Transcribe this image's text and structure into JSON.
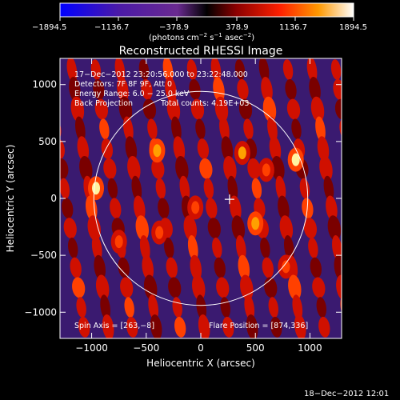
{
  "colorbar": {
    "ticks": [
      "−1894.5",
      "−1136.7",
      "−378.9",
      "378.9",
      "1136.7",
      "1894.5"
    ],
    "units_prefix": "(photons cm",
    "units_exp1": "−2",
    "units_mid": " s",
    "units_exp2": "−1",
    "units_mid2": " asec",
    "units_exp3": "−2",
    "units_suffix": ")"
  },
  "overlay": {
    "line1": "17−Dec−2012 23:20:56.000 to 23:22:48.000",
    "line2": "Detectors: 7F 8F 9F, Att 0",
    "line3": "Energy Range: 6.0 − 25.0 keV",
    "line4a": "Back Projection",
    "line4b": "Total counts: 4.19E+03",
    "spin_axis": "Spin Axis = [263,−8]",
    "flare_position": "Flare Position = [874,336]"
  },
  "footer": {
    "date": "18−Dec−2012 12:01"
  },
  "chart_data": {
    "type": "heatmap",
    "title": "Reconstructed RHESSI Image",
    "xlabel": "Heliocentric X (arcsec)",
    "ylabel": "Heliocentric Y (arcsec)",
    "xlim": [
      -1290,
      1290
    ],
    "ylim": [
      -1230,
      1230
    ],
    "xticks": [
      -1000,
      -500,
      0,
      500,
      1000
    ],
    "yticks": [
      -1000,
      -500,
      0,
      500,
      1000
    ],
    "xtick_labels": [
      "−1000",
      "−500",
      "0",
      "500",
      "1000"
    ],
    "ytick_labels": [
      "−1000",
      "−500",
      "0",
      "500",
      "1000"
    ],
    "colorscale_range": [
      -1894.5,
      1894.5
    ],
    "solar_disk": {
      "center": [
        0,
        0
      ],
      "radius": 980
    },
    "spin_axis_marker": [
      263,
      -8
    ],
    "flare_position": [
      874,
      336
    ],
    "fringes": {
      "count": 12,
      "period_arcsec": 220,
      "direction": "nearly vertical, slightly tilted"
    },
    "bright_sources": [
      {
        "x": 870,
        "y": 340,
        "value": 1850
      },
      {
        "x": -960,
        "y": 90,
        "value": 1700
      },
      {
        "x": 500,
        "y": -220,
        "value": 1500
      },
      {
        "x": -400,
        "y": 420,
        "value": 1400
      },
      {
        "x": 380,
        "y": 400,
        "value": 1350
      },
      {
        "x": -380,
        "y": -300,
        "value": 1300
      },
      {
        "x": -50,
        "y": -80,
        "value": 1250
      },
      {
        "x": 600,
        "y": 250,
        "value": 1200
      },
      {
        "x": -750,
        "y": -380,
        "value": 1150
      },
      {
        "x": 780,
        "y": -600,
        "value": 1100
      }
    ]
  }
}
